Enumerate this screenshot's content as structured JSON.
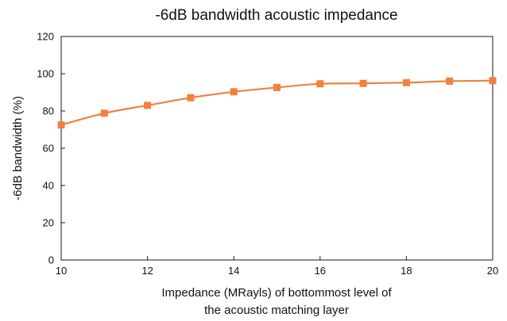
{
  "chart_data": {
    "type": "line",
    "title": "-6dB bandwidth acoustic impedance",
    "xlabel": [
      "Impedance (MRayls) of bottommost level of",
      "the acoustic matching layer"
    ],
    "ylabel": "-6dB bandwidth (%)",
    "xlim": [
      10,
      20
    ],
    "ylim": [
      0,
      120
    ],
    "xticks": [
      "10",
      "12",
      "14",
      "16",
      "18",
      "20"
    ],
    "yticks": [
      "0",
      "20",
      "40",
      "60",
      "80",
      "100",
      "120"
    ],
    "grid": false,
    "legend": "none",
    "series": [
      {
        "color": "#f0823c",
        "marker": "square",
        "x": [
          10,
          11,
          12,
          13,
          14,
          15,
          16,
          17,
          18,
          19,
          20
        ],
        "y": [
          72.5,
          78.8,
          83.0,
          87.1,
          90.3,
          92.6,
          94.6,
          94.8,
          95.2,
          96.0,
          96.3
        ]
      }
    ]
  }
}
